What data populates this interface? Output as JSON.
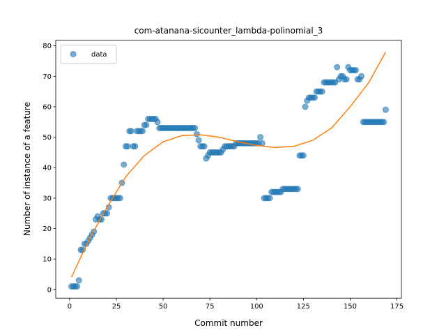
{
  "chart_data": {
    "type": "scatter",
    "title": "com-atanana-sicounter_lambda-polinomial_3",
    "xlabel": "Commit number",
    "ylabel": "Number of instance of a feature",
    "xlim": [
      -7.4,
      177.4
    ],
    "ylim": [
      -2.85,
      81.85
    ],
    "xticks": [
      0,
      25,
      50,
      75,
      100,
      125,
      150,
      175
    ],
    "yticks": [
      0,
      10,
      20,
      30,
      40,
      50,
      60,
      70,
      80
    ],
    "legend": "upper left",
    "series": [
      {
        "name": "data",
        "type": "scatter",
        "color": "#1f77b4",
        "x": [
          1,
          2,
          3,
          4,
          5,
          6,
          7,
          8,
          9,
          10,
          11,
          12,
          13,
          14,
          15,
          16,
          17,
          18,
          19,
          20,
          21,
          22,
          23,
          24,
          25,
          26,
          27,
          28,
          29,
          30,
          31,
          32,
          33,
          34,
          35,
          36,
          37,
          38,
          39,
          40,
          41,
          42,
          43,
          44,
          45,
          46,
          47,
          48,
          49,
          50,
          51,
          52,
          53,
          54,
          55,
          56,
          57,
          58,
          59,
          60,
          61,
          62,
          63,
          64,
          65,
          66,
          67,
          68,
          69,
          70,
          71,
          72,
          73,
          74,
          75,
          76,
          77,
          78,
          79,
          80,
          81,
          82,
          83,
          84,
          85,
          86,
          87,
          88,
          89,
          90,
          91,
          92,
          93,
          94,
          95,
          96,
          97,
          98,
          99,
          100,
          101,
          102,
          103,
          104,
          105,
          106,
          107,
          108,
          109,
          110,
          111,
          112,
          113,
          114,
          115,
          116,
          117,
          118,
          119,
          120,
          121,
          122,
          123,
          124,
          125,
          126,
          127,
          128,
          129,
          130,
          131,
          132,
          133,
          134,
          135,
          136,
          137,
          138,
          139,
          140,
          141,
          142,
          143,
          144,
          145,
          146,
          147,
          148,
          149,
          150,
          151,
          152,
          153,
          154,
          155,
          156,
          157,
          158,
          159,
          160,
          161,
          162,
          163,
          164,
          165,
          166,
          167,
          168,
          169
        ],
        "values": [
          1,
          1,
          1,
          1,
          3,
          13,
          13,
          15,
          15,
          16,
          17,
          18,
          19,
          23,
          24,
          23,
          23,
          25,
          25,
          25,
          27,
          30,
          30,
          30,
          30,
          30,
          30,
          35,
          41,
          47,
          47,
          52,
          52,
          47,
          47,
          52,
          52,
          52,
          52,
          54,
          54,
          56,
          56,
          56,
          56,
          56,
          55,
          53,
          53,
          53,
          53,
          53,
          53,
          53,
          53,
          53,
          53,
          53,
          53,
          53,
          53,
          53,
          53,
          53,
          53,
          53,
          53,
          51,
          49,
          47,
          47,
          47,
          43,
          44,
          45,
          45,
          45,
          45,
          45,
          45,
          45,
          46,
          47,
          47,
          47,
          47,
          47,
          47,
          48,
          48,
          48,
          48,
          48,
          48,
          48,
          48,
          48,
          48,
          48,
          48,
          48,
          50,
          48,
          30,
          30,
          30,
          30,
          32,
          32,
          32,
          32,
          32,
          32,
          33,
          33,
          33,
          33,
          33,
          33,
          33,
          33,
          33,
          44,
          44,
          44,
          60,
          62,
          63,
          63,
          63,
          63,
          65,
          65,
          65,
          65,
          68,
          68,
          68,
          68,
          68,
          68,
          68,
          73,
          69,
          70,
          70,
          69,
          69,
          73,
          72,
          72,
          72,
          72,
          69,
          69,
          70,
          55,
          55,
          55,
          55,
          55,
          55,
          55,
          55,
          55,
          55,
          55,
          55,
          59
        ]
      },
      {
        "type": "line",
        "color": "#ff7f0e",
        "x": [
          1,
          10,
          20,
          30,
          40,
          50,
          60,
          70,
          80,
          90,
          100,
          110,
          120,
          130,
          140,
          150,
          160,
          169
        ],
        "values": [
          4,
          16,
          27,
          37,
          44,
          48.5,
          50.5,
          50.8,
          50,
          48.5,
          47.3,
          46.6,
          47,
          49,
          53,
          60,
          68,
          78
        ]
      }
    ]
  }
}
